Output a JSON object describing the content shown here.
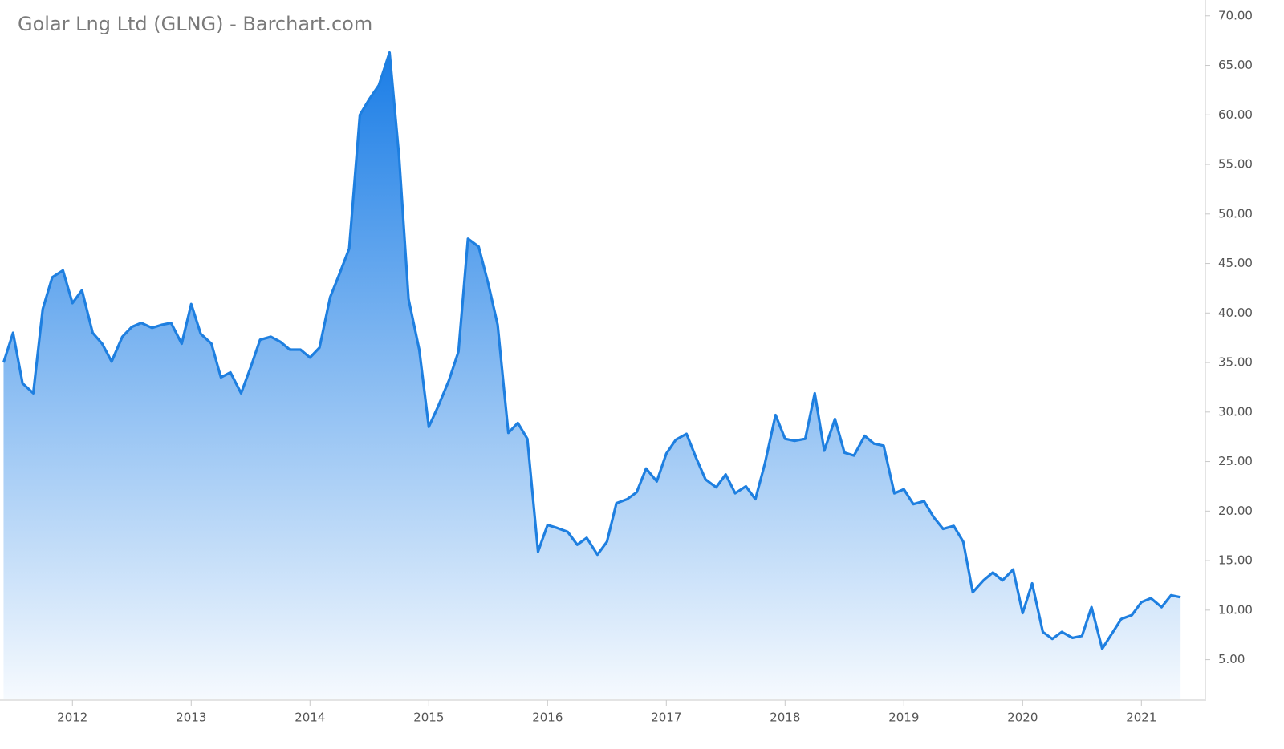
{
  "chart_data": {
    "type": "area",
    "title": "Golar Lng Ltd (GLNG) - Barchart.com",
    "x": [
      2011.42,
      2011.5,
      2011.58,
      2011.67,
      2011.75,
      2011.83,
      2011.92,
      2012.0,
      2012.08,
      2012.17,
      2012.25,
      2012.33,
      2012.42,
      2012.5,
      2012.58,
      2012.67,
      2012.75,
      2012.83,
      2012.92,
      2013.0,
      2013.08,
      2013.17,
      2013.25,
      2013.33,
      2013.42,
      2013.5,
      2013.58,
      2013.67,
      2013.75,
      2013.83,
      2013.92,
      2014.0,
      2014.08,
      2014.17,
      2014.25,
      2014.33,
      2014.42,
      2014.5,
      2014.58,
      2014.67,
      2014.75,
      2014.83,
      2014.92,
      2015.0,
      2015.08,
      2015.17,
      2015.25,
      2015.33,
      2015.42,
      2015.5,
      2015.58,
      2015.67,
      2015.75,
      2015.83,
      2015.92,
      2016.0,
      2016.08,
      2016.17,
      2016.25,
      2016.33,
      2016.42,
      2016.5,
      2016.58,
      2016.67,
      2016.75,
      2016.83,
      2016.92,
      2017.0,
      2017.08,
      2017.17,
      2017.25,
      2017.33,
      2017.42,
      2017.5,
      2017.58,
      2017.67,
      2017.75,
      2017.83,
      2017.92,
      2018.0,
      2018.08,
      2018.17,
      2018.25,
      2018.33,
      2018.42,
      2018.5,
      2018.58,
      2018.67,
      2018.75,
      2018.83,
      2018.92,
      2019.0,
      2019.08,
      2019.17,
      2019.25,
      2019.33,
      2019.42,
      2019.5,
      2019.58,
      2019.67,
      2019.75,
      2019.83,
      2019.92,
      2020.0,
      2020.08,
      2020.17,
      2020.25,
      2020.33,
      2020.42,
      2020.5,
      2020.58,
      2020.67,
      2020.75,
      2020.83,
      2020.92,
      2021.0,
      2021.08,
      2021.17,
      2021.25,
      2021.33
    ],
    "values": [
      35.0,
      38.0,
      32.9,
      31.9,
      40.4,
      43.6,
      44.3,
      41.0,
      42.3,
      38.0,
      36.9,
      35.1,
      37.6,
      38.6,
      39.0,
      38.5,
      38.8,
      39.0,
      36.9,
      40.9,
      37.9,
      36.9,
      33.5,
      34.0,
      31.9,
      34.5,
      37.3,
      37.6,
      37.1,
      36.3,
      36.3,
      35.5,
      36.5,
      41.6,
      44.0,
      46.5,
      60.0,
      61.6,
      63.0,
      66.3,
      55.8,
      41.4,
      36.3,
      28.5,
      30.6,
      33.2,
      36.1,
      47.5,
      46.7,
      43.0,
      38.8,
      27.9,
      28.9,
      27.3,
      15.9,
      18.6,
      18.3,
      17.9,
      16.6,
      17.3,
      15.6,
      16.9,
      20.8,
      21.2,
      21.9,
      24.3,
      23.0,
      25.8,
      27.2,
      27.8,
      25.4,
      23.2,
      22.4,
      23.7,
      21.8,
      22.5,
      21.2,
      24.8,
      29.7,
      27.3,
      27.1,
      27.3,
      31.9,
      26.1,
      29.3,
      25.9,
      25.6,
      27.6,
      26.8,
      26.6,
      21.8,
      22.2,
      20.7,
      21.0,
      19.4,
      18.2,
      18.5,
      16.9,
      11.8,
      13.0,
      13.8,
      13.0,
      14.1,
      9.7,
      12.7,
      7.8,
      7.1,
      7.8,
      7.2,
      7.4,
      10.3,
      6.1,
      7.6,
      9.1,
      9.5,
      10.8,
      11.2,
      10.3,
      11.5,
      11.3
    ],
    "color": "#1e7fe0",
    "xlim": [
      2011.39,
      2021.525
    ],
    "xticks": [
      2012,
      2013,
      2014,
      2015,
      2016,
      2017,
      2018,
      2019,
      2020,
      2021
    ],
    "ylim": [
      1,
      71.6
    ],
    "yticks": [
      {
        "value": 5,
        "label": "5.00"
      },
      {
        "value": 10,
        "label": "10.00"
      },
      {
        "value": 15,
        "label": "15.00"
      },
      {
        "value": 20,
        "label": "20.00"
      },
      {
        "value": 25,
        "label": "25.00"
      },
      {
        "value": 30,
        "label": "30.00"
      },
      {
        "value": 35,
        "label": "35.00"
      },
      {
        "value": 40,
        "label": "40.00"
      },
      {
        "value": 45,
        "label": "45.00"
      },
      {
        "value": 50,
        "label": "50.00"
      },
      {
        "value": 55,
        "label": "55.00"
      },
      {
        "value": 60,
        "label": "60.00"
      },
      {
        "value": 65,
        "label": "65.00"
      },
      {
        "value": 70,
        "label": "70.00"
      }
    ],
    "y_axis_side": "right"
  }
}
